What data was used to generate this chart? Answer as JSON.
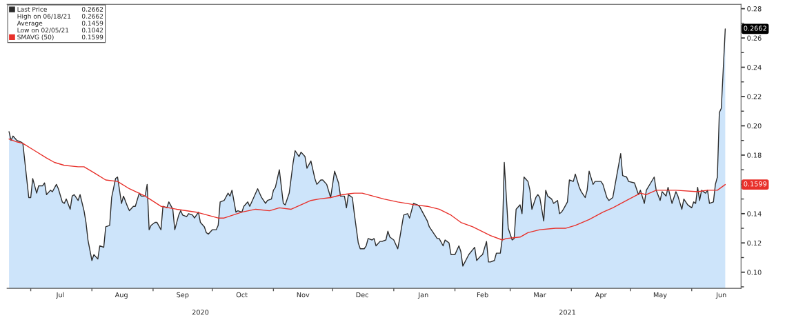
{
  "chart_data": {
    "type": "area",
    "series": [
      {
        "name": "Last Price",
        "color": "#2b2b2b",
        "x": [
          "2020-06-20",
          "2020-06-21",
          "2020-06-22",
          "2020-06-24",
          "2020-06-26",
          "2020-06-27",
          "2020-06-30",
          "2020-07-01",
          "2020-07-02",
          "2020-07-04",
          "2020-07-05",
          "2020-07-07",
          "2020-07-08",
          "2020-07-09",
          "2020-07-11",
          "2020-07-12",
          "2020-07-14",
          "2020-07-15",
          "2020-07-17",
          "2020-07-18",
          "2020-07-19",
          "2020-07-21",
          "2020-07-22",
          "2020-07-23",
          "2020-07-25",
          "2020-07-26",
          "2020-07-28",
          "2020-07-29",
          "2020-07-30",
          "2020-08-01",
          "2020-08-02",
          "2020-08-04",
          "2020-08-05",
          "2020-08-07",
          "2020-08-08",
          "2020-08-10",
          "2020-08-11",
          "2020-08-13",
          "2020-08-14",
          "2020-08-16",
          "2020-08-17",
          "2020-08-19",
          "2020-08-20",
          "2020-08-22",
          "2020-08-23",
          "2020-08-25",
          "2020-08-26",
          "2020-08-28",
          "2020-08-29",
          "2020-08-30",
          "2020-08-31",
          "2020-09-02",
          "2020-09-03",
          "2020-09-05",
          "2020-09-06",
          "2020-09-08",
          "2020-09-09",
          "2020-09-11",
          "2020-09-12",
          "2020-09-14",
          "2020-09-15",
          "2020-09-16",
          "2020-09-18",
          "2020-09-19",
          "2020-09-21",
          "2020-09-22",
          "2020-09-24",
          "2020-09-25",
          "2020-09-27",
          "2020-09-28",
          "2020-09-29",
          "2020-10-01",
          "2020-10-03",
          "2020-10-04",
          "2020-10-05",
          "2020-10-07",
          "2020-10-09",
          "2020-10-10",
          "2020-10-11",
          "2020-10-13",
          "2020-10-14",
          "2020-10-16",
          "2020-10-17",
          "2020-10-19",
          "2020-10-20",
          "2020-10-22",
          "2020-10-24",
          "2020-10-26",
          "2020-10-28",
          "2020-10-29",
          "2020-10-31",
          "2020-11-01",
          "2020-11-02",
          "2020-11-04",
          "2020-11-06",
          "2020-11-07",
          "2020-11-09",
          "2020-11-11",
          "2020-11-12",
          "2020-11-14",
          "2020-11-15",
          "2020-11-17",
          "2020-11-18",
          "2020-11-20",
          "2020-11-22",
          "2020-11-23",
          "2020-11-25",
          "2020-11-26",
          "2020-11-28",
          "2020-11-30",
          "2020-12-02",
          "2020-12-04",
          "2020-12-05",
          "2020-12-07",
          "2020-12-08",
          "2020-12-09",
          "2020-12-11",
          "2020-12-12",
          "2020-12-14",
          "2020-12-15",
          "2020-12-17",
          "2020-12-18",
          "2020-12-19",
          "2020-12-21",
          "2020-12-22",
          "2020-12-23",
          "2020-12-25",
          "2020-12-26",
          "2020-12-28",
          "2020-12-29",
          "2020-12-30",
          "2021-01-01",
          "2021-01-03",
          "2021-01-04",
          "2021-01-06",
          "2021-01-08",
          "2021-01-09",
          "2021-01-11",
          "2021-01-13",
          "2021-01-14",
          "2021-01-16",
          "2021-01-18",
          "2021-01-19",
          "2021-01-21",
          "2021-01-23",
          "2021-01-24",
          "2021-01-26",
          "2021-01-27",
          "2021-01-28",
          "2021-01-29",
          "2021-01-30",
          "2021-02-01",
          "2021-02-02",
          "2021-02-03",
          "2021-02-04",
          "2021-02-05",
          "2021-02-08",
          "2021-02-11",
          "2021-02-12",
          "2021-02-14",
          "2021-02-15",
          "2021-02-17",
          "2021-02-18",
          "2021-02-19",
          "2021-02-21",
          "2021-02-22",
          "2021-02-24",
          "2021-02-25",
          "2021-02-26",
          "2021-02-28",
          "2021-03-02",
          "2021-03-03",
          "2021-03-04",
          "2021-03-06",
          "2021-03-07",
          "2021-03-08",
          "2021-03-10",
          "2021-03-11",
          "2021-03-12",
          "2021-03-14",
          "2021-03-15",
          "2021-03-16",
          "2021-03-18",
          "2021-03-19",
          "2021-03-20",
          "2021-03-22",
          "2021-03-23",
          "2021-03-25",
          "2021-03-26",
          "2021-03-27",
          "2021-03-28",
          "2021-03-30",
          "2021-03-31",
          "2021-04-02",
          "2021-04-03",
          "2021-04-05",
          "2021-04-06",
          "2021-04-08",
          "2021-04-09",
          "2021-04-10",
          "2021-04-12",
          "2021-04-13",
          "2021-04-15",
          "2021-04-16",
          "2021-04-17",
          "2021-04-19",
          "2021-04-20",
          "2021-04-22",
          "2021-04-26",
          "2021-04-27",
          "2021-04-29",
          "2021-04-30",
          "2021-05-03",
          "2021-05-05",
          "2021-05-06",
          "2021-05-08",
          "2021-05-09",
          "2021-05-13",
          "2021-05-14",
          "2021-05-16",
          "2021-05-17",
          "2021-05-19",
          "2021-05-20",
          "2021-05-22",
          "2021-05-24",
          "2021-05-25",
          "2021-05-27",
          "2021-05-28",
          "2021-05-30",
          "2021-06-01",
          "2021-06-02",
          "2021-06-03",
          "2021-06-04",
          "2021-06-05",
          "2021-06-06",
          "2021-06-08",
          "2021-06-09",
          "2021-06-10",
          "2021-06-12",
          "2021-06-13",
          "2021-06-14",
          "2021-06-15",
          "2021-06-16",
          "2021-06-18"
        ],
        "values": [
          0.196,
          0.19,
          0.193,
          0.19,
          0.189,
          0.188,
          0.151,
          0.151,
          0.164,
          0.154,
          0.159,
          0.159,
          0.161,
          0.153,
          0.156,
          0.155,
          0.16,
          0.157,
          0.148,
          0.147,
          0.15,
          0.143,
          0.152,
          0.153,
          0.149,
          0.153,
          0.142,
          0.134,
          0.122,
          0.108,
          0.112,
          0.109,
          0.118,
          0.117,
          0.131,
          0.132,
          0.151,
          0.164,
          0.165,
          0.147,
          0.152,
          0.145,
          0.142,
          0.145,
          0.145,
          0.154,
          0.152,
          0.152,
          0.16,
          0.129,
          0.132,
          0.134,
          0.134,
          0.129,
          0.145,
          0.144,
          0.148,
          0.143,
          0.129,
          0.139,
          0.142,
          0.139,
          0.138,
          0.14,
          0.139,
          0.137,
          0.141,
          0.134,
          0.131,
          0.127,
          0.126,
          0.129,
          0.129,
          0.132,
          0.148,
          0.149,
          0.154,
          0.152,
          0.156,
          0.141,
          0.142,
          0.141,
          0.145,
          0.148,
          0.145,
          0.151,
          0.157,
          0.151,
          0.147,
          0.149,
          0.15,
          0.156,
          0.158,
          0.17,
          0.147,
          0.146,
          0.154,
          0.175,
          0.183,
          0.179,
          0.182,
          0.179,
          0.171,
          0.176,
          0.164,
          0.16,
          0.163,
          0.163,
          0.16,
          0.151,
          0.169,
          0.161,
          0.152,
          0.152,
          0.144,
          0.153,
          0.151,
          0.14,
          0.12,
          0.116,
          0.116,
          0.118,
          0.123,
          0.122,
          0.123,
          0.118,
          0.121,
          0.121,
          0.122,
          0.128,
          0.124,
          0.122,
          0.116,
          0.123,
          0.139,
          0.14,
          0.137,
          0.147,
          0.146,
          0.145,
          0.14,
          0.135,
          0.131,
          0.127,
          0.123,
          0.123,
          0.118,
          0.122,
          0.121,
          0.12,
          0.112,
          0.112,
          0.115,
          0.118,
          0.114,
          0.1042,
          0.112,
          0.117,
          0.108,
          0.111,
          0.112,
          0.121,
          0.107,
          0.107,
          0.108,
          0.113,
          0.113,
          0.123,
          0.175,
          0.13,
          0.122,
          0.123,
          0.143,
          0.146,
          0.14,
          0.165,
          0.162,
          0.156,
          0.143,
          0.151,
          0.153,
          0.151,
          0.135,
          0.156,
          0.152,
          0.15,
          0.147,
          0.149,
          0.14,
          0.141,
          0.143,
          0.148,
          0.163,
          0.162,
          0.167,
          0.158,
          0.155,
          0.151,
          0.156,
          0.169,
          0.16,
          0.162,
          0.162,
          0.162,
          0.16,
          0.151,
          0.149,
          0.151,
          0.181,
          0.166,
          0.165,
          0.162,
          0.161,
          0.153,
          0.156,
          0.147,
          0.156,
          0.165,
          0.156,
          0.149,
          0.155,
          0.152,
          0.158,
          0.147,
          0.155,
          0.152,
          0.143,
          0.15,
          0.146,
          0.144,
          0.148,
          0.147,
          0.158,
          0.149,
          0.156,
          0.154,
          0.156,
          0.147,
          0.148,
          0.16,
          0.165,
          0.209,
          0.212,
          0.2662
        ]
      },
      {
        "name": "SMAVG (50)",
        "type": "line",
        "color": "#e8302a",
        "x": [
          "2020-06-20",
          "2020-06-24",
          "2020-06-27",
          "2020-07-03",
          "2020-07-09",
          "2020-07-13",
          "2020-07-18",
          "2020-07-25",
          "2020-07-28",
          "2020-08-02",
          "2020-08-08",
          "2020-08-14",
          "2020-08-20",
          "2020-08-28",
          "2020-09-05",
          "2020-09-13",
          "2020-09-23",
          "2020-10-04",
          "2020-10-07",
          "2020-10-16",
          "2020-10-23",
          "2020-10-30",
          "2020-11-04",
          "2020-11-10",
          "2020-11-20",
          "2020-11-24",
          "2020-11-30",
          "2020-12-06",
          "2020-12-12",
          "2020-12-16",
          "2020-12-27",
          "2021-01-03",
          "2021-01-12",
          "2021-01-18",
          "2021-01-24",
          "2021-01-30",
          "2021-02-04",
          "2021-02-10",
          "2021-02-19",
          "2021-02-25",
          "2021-02-27",
          "2021-03-06",
          "2021-03-10",
          "2021-03-16",
          "2021-03-24",
          "2021-03-29",
          "2021-04-03",
          "2021-04-10",
          "2021-04-17",
          "2021-04-22",
          "2021-04-29",
          "2021-05-06",
          "2021-05-09",
          "2021-05-14",
          "2021-05-24",
          "2021-06-04",
          "2021-06-09",
          "2021-06-14",
          "2021-06-18"
        ],
        "values": [
          0.191,
          0.189,
          0.188,
          0.183,
          0.178,
          0.175,
          0.173,
          0.172,
          0.172,
          0.168,
          0.163,
          0.162,
          0.157,
          0.152,
          0.145,
          0.143,
          0.141,
          0.137,
          0.137,
          0.141,
          0.143,
          0.142,
          0.144,
          0.143,
          0.149,
          0.15,
          0.151,
          0.153,
          0.154,
          0.154,
          0.15,
          0.148,
          0.146,
          0.145,
          0.143,
          0.139,
          0.134,
          0.131,
          0.125,
          0.122,
          0.123,
          0.124,
          0.127,
          0.129,
          0.13,
          0.13,
          0.132,
          0.136,
          0.141,
          0.144,
          0.149,
          0.154,
          0.153,
          0.156,
          0.156,
          0.155,
          0.156,
          0.156,
          0.1599
        ]
      }
    ],
    "xlim": [
      "2020-06-19",
      "2021-06-26"
    ],
    "xticks": [
      {
        "value": "2020-07-01",
        "label": null
      },
      {
        "value": "2020-07-16",
        "label": "Jul"
      },
      {
        "value": "2020-08-01",
        "label": null
      },
      {
        "value": "2020-08-16",
        "label": "Aug"
      },
      {
        "value": "2020-09-01",
        "label": null
      },
      {
        "value": "2020-09-16",
        "label": "Sep"
      },
      {
        "value": "2020-10-01",
        "label": null
      },
      {
        "value": "2020-10-16",
        "label": "Oct"
      },
      {
        "value": "2020-11-01",
        "label": null
      },
      {
        "value": "2020-11-16",
        "label": "Nov"
      },
      {
        "value": "2020-12-01",
        "label": null
      },
      {
        "value": "2020-12-16",
        "label": "Dec"
      },
      {
        "value": "2021-01-01",
        "label": null
      },
      {
        "value": "2021-01-16",
        "label": "Jan"
      },
      {
        "value": "2021-02-01",
        "label": null
      },
      {
        "value": "2021-02-15",
        "label": "Feb"
      },
      {
        "value": "2021-03-01",
        "label": null
      },
      {
        "value": "2021-03-16",
        "label": "Mar"
      },
      {
        "value": "2021-04-01",
        "label": null
      },
      {
        "value": "2021-04-16",
        "label": "Apr"
      },
      {
        "value": "2021-05-01",
        "label": null
      },
      {
        "value": "2021-05-16",
        "label": "May"
      },
      {
        "value": "2021-06-01",
        "label": null
      },
      {
        "value": "2021-06-16",
        "label": "Jun"
      }
    ],
    "ylim": [
      0.089,
      0.283
    ],
    "yticks": [
      {
        "value": 0.09,
        "label": null
      },
      {
        "value": 0.1,
        "label": "0.10"
      },
      {
        "value": 0.11,
        "label": null
      },
      {
        "value": 0.12,
        "label": "0.12"
      },
      {
        "value": 0.13,
        "label": null
      },
      {
        "value": 0.14,
        "label": "0.14"
      },
      {
        "value": 0.15,
        "label": null
      },
      {
        "value": 0.16,
        "label": null
      },
      {
        "value": 0.17,
        "label": null
      },
      {
        "value": 0.18,
        "label": "0.18"
      },
      {
        "value": 0.19,
        "label": null
      },
      {
        "value": 0.2,
        "label": "0.20"
      },
      {
        "value": 0.21,
        "label": null
      },
      {
        "value": 0.22,
        "label": "0.22"
      },
      {
        "value": 0.23,
        "label": null
      },
      {
        "value": 0.24,
        "label": "0.24"
      },
      {
        "value": 0.25,
        "label": null
      },
      {
        "value": 0.26,
        "label": "0.26"
      },
      {
        "value": 0.27,
        "label": null
      },
      {
        "value": 0.28,
        "label": "0.28"
      }
    ],
    "annotations": [
      "High on 06/18/21 0.2662",
      "Average 0.1459",
      "Low on 02/05/21 0.1042",
      "2020",
      "2021",
      {
        "text": "0.2662",
        "x": "2021-06-18",
        "y": 0.2662
      },
      {
        "text": "0.1599",
        "x": "2021-06-18",
        "y": 0.1599
      }
    ],
    "legend": "top left",
    "grid": false
  }
}
